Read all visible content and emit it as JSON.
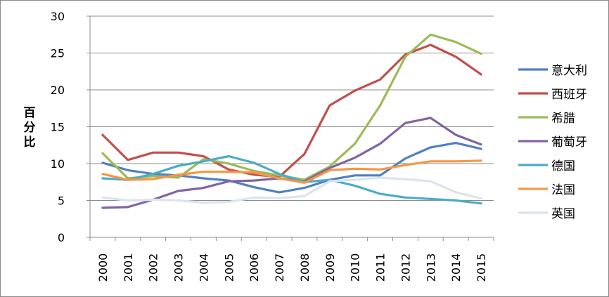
{
  "chart_data": {
    "type": "line",
    "x": [
      "2000",
      "2001",
      "2002",
      "2003",
      "2004",
      "2005",
      "2006",
      "2007",
      "2008",
      "2009",
      "2010",
      "2011",
      "2012",
      "2013",
      "2014",
      "2015"
    ],
    "ylabel": "百分比",
    "ylim": [
      0,
      30
    ],
    "yticks": [
      0,
      5,
      10,
      15,
      20,
      25,
      30
    ],
    "grid": true,
    "legend_position": "right",
    "series": [
      {
        "name": "意大利",
        "color": "#4F81BD",
        "values": [
          10.1,
          9.1,
          8.6,
          8.4,
          8.0,
          7.7,
          6.8,
          6.1,
          6.7,
          7.8,
          8.4,
          8.4,
          10.7,
          12.2,
          12.8,
          12.0
        ]
      },
      {
        "name": "西班牙",
        "color": "#C0504D",
        "values": [
          13.9,
          10.5,
          11.5,
          11.5,
          11.0,
          9.2,
          8.5,
          8.2,
          11.3,
          17.9,
          19.9,
          21.4,
          24.8,
          26.1,
          24.5,
          22.1
        ]
      },
      {
        "name": "希腊",
        "color": "#9BBB59",
        "values": [
          11.4,
          8.0,
          8.3,
          8.1,
          10.6,
          10.0,
          9.0,
          8.4,
          7.8,
          9.6,
          12.7,
          17.9,
          24.5,
          27.5,
          26.5,
          24.9
        ]
      },
      {
        "name": "葡萄牙",
        "color": "#8064A2",
        "values": [
          4.0,
          4.1,
          5.1,
          6.3,
          6.7,
          7.6,
          7.7,
          8.0,
          7.6,
          9.4,
          10.8,
          12.7,
          15.5,
          16.2,
          13.9,
          12.6
        ]
      },
      {
        "name": "德国",
        "color": "#4BACC6",
        "values": [
          8.0,
          7.8,
          8.6,
          9.7,
          10.3,
          11.0,
          10.1,
          8.6,
          7.5,
          7.8,
          7.0,
          5.9,
          5.4,
          5.2,
          5.0,
          4.6
        ]
      },
      {
        "name": "法国",
        "color": "#F79646",
        "values": [
          8.6,
          7.8,
          7.9,
          8.5,
          8.9,
          8.9,
          8.8,
          8.0,
          7.4,
          9.1,
          9.3,
          9.2,
          9.8,
          10.3,
          10.3,
          10.4
        ]
      },
      {
        "name": "英国",
        "color": "#DCE3EF",
        "values": [
          5.4,
          5.0,
          5.1,
          5.0,
          4.7,
          4.8,
          5.4,
          5.3,
          5.6,
          7.6,
          7.8,
          8.1,
          7.9,
          7.6,
          6.1,
          5.3
        ]
      }
    ]
  }
}
